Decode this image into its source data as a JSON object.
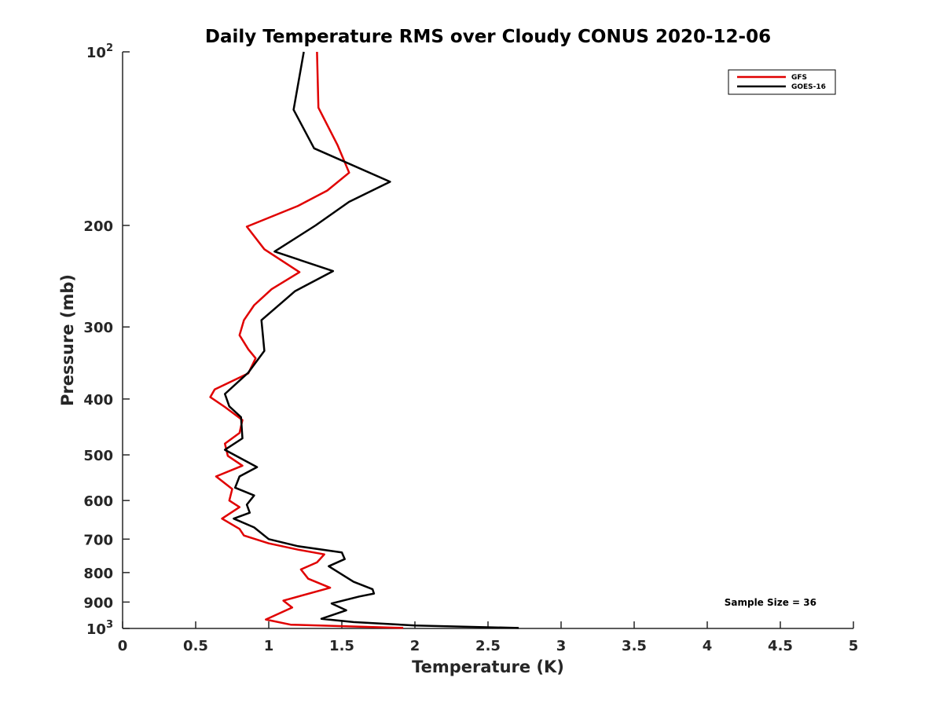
{
  "chart_data": {
    "type": "line",
    "title": "Daily Temperature RMS over Cloudy CONUS 2020-12-06",
    "xlabel": "Temperature (K)",
    "ylabel": "Pressure (mb)",
    "xlim": [
      0,
      5
    ],
    "ylim": [
      100,
      1000
    ],
    "y_scale": "log",
    "y_reversed": true,
    "grid": false,
    "legend_position": "top-right",
    "x_ticks": [
      "0",
      "0.5",
      "1",
      "1.5",
      "2",
      "2.5",
      "3",
      "3.5",
      "4",
      "4.5",
      "5"
    ],
    "y_ticks": [
      {
        "value": 100,
        "label": "10",
        "sup": "2"
      },
      {
        "value": 200,
        "label": "200",
        "sup": ""
      },
      {
        "value": 300,
        "label": "300",
        "sup": ""
      },
      {
        "value": 400,
        "label": "400",
        "sup": ""
      },
      {
        "value": 500,
        "label": "500",
        "sup": ""
      },
      {
        "value": 600,
        "label": "600",
        "sup": ""
      },
      {
        "value": 700,
        "label": "700",
        "sup": ""
      },
      {
        "value": 800,
        "label": "800",
        "sup": ""
      },
      {
        "value": 900,
        "label": "900",
        "sup": ""
      },
      {
        "value": 1000,
        "label": "10",
        "sup": "3"
      }
    ],
    "annotation": "Sample Size = 36",
    "series": [
      {
        "name": "GFS",
        "color": "#e00000",
        "points": [
          [
            1.33,
            100
          ],
          [
            1.34,
            125
          ],
          [
            1.47,
            145
          ],
          [
            1.55,
            162
          ],
          [
            1.4,
            174
          ],
          [
            1.2,
            185
          ],
          [
            0.85,
            201
          ],
          [
            0.97,
            220
          ],
          [
            1.21,
            241
          ],
          [
            1.02,
            258
          ],
          [
            0.9,
            275
          ],
          [
            0.83,
            292
          ],
          [
            0.8,
            310
          ],
          [
            0.86,
            328
          ],
          [
            0.91,
            340
          ],
          [
            0.86,
            361
          ],
          [
            0.63,
            385
          ],
          [
            0.6,
            397
          ],
          [
            0.7,
            413
          ],
          [
            0.82,
            435
          ],
          [
            0.8,
            458
          ],
          [
            0.7,
            478
          ],
          [
            0.72,
            502
          ],
          [
            0.82,
            522
          ],
          [
            0.64,
            545
          ],
          [
            0.75,
            573
          ],
          [
            0.73,
            600
          ],
          [
            0.8,
            616
          ],
          [
            0.68,
            645
          ],
          [
            0.8,
            672
          ],
          [
            0.83,
            690
          ],
          [
            1.0,
            712
          ],
          [
            1.2,
            730
          ],
          [
            1.38,
            744
          ],
          [
            1.33,
            768
          ],
          [
            1.22,
            790
          ],
          [
            1.27,
            820
          ],
          [
            1.42,
            850
          ],
          [
            1.1,
            895
          ],
          [
            1.16,
            920
          ],
          [
            0.98,
            965
          ],
          [
            1.15,
            985
          ],
          [
            1.92,
            998
          ]
        ]
      },
      {
        "name": "GOES-16",
        "color": "#000000",
        "points": [
          [
            1.24,
            100
          ],
          [
            1.17,
            126
          ],
          [
            1.31,
            147
          ],
          [
            1.83,
            168
          ],
          [
            1.55,
            182
          ],
          [
            1.32,
            200
          ],
          [
            1.04,
            222
          ],
          [
            1.44,
            240
          ],
          [
            1.18,
            260
          ],
          [
            0.95,
            292
          ],
          [
            0.97,
            330
          ],
          [
            0.86,
            360
          ],
          [
            0.7,
            392
          ],
          [
            0.73,
            412
          ],
          [
            0.81,
            430
          ],
          [
            0.82,
            468
          ],
          [
            0.7,
            490
          ],
          [
            0.92,
            525
          ],
          [
            0.8,
            545
          ],
          [
            0.77,
            570
          ],
          [
            0.9,
            588
          ],
          [
            0.85,
            610
          ],
          [
            0.87,
            630
          ],
          [
            0.76,
            645
          ],
          [
            0.9,
            668
          ],
          [
            1.0,
            700
          ],
          [
            1.2,
            720
          ],
          [
            1.5,
            738
          ],
          [
            1.52,
            758
          ],
          [
            1.41,
            780
          ],
          [
            1.48,
            800
          ],
          [
            1.58,
            830
          ],
          [
            1.71,
            855
          ],
          [
            1.72,
            870
          ],
          [
            1.62,
            880
          ],
          [
            1.43,
            905
          ],
          [
            1.53,
            930
          ],
          [
            1.36,
            962
          ],
          [
            1.58,
            975
          ],
          [
            2.0,
            988
          ],
          [
            2.71,
            998
          ]
        ]
      }
    ]
  }
}
